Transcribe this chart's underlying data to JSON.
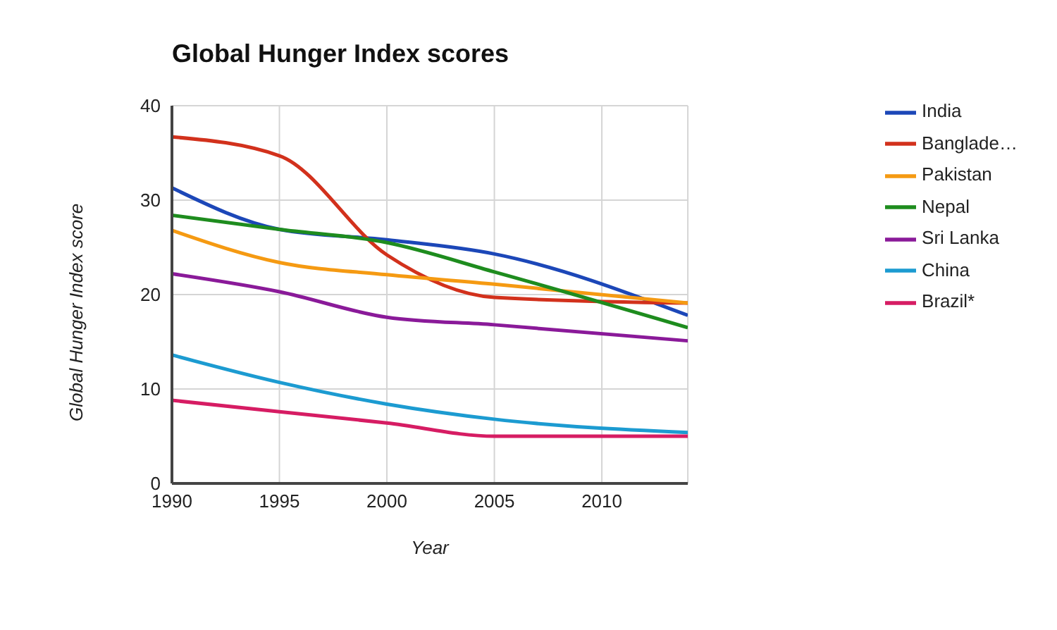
{
  "chart_data": {
    "type": "line",
    "title": "Global Hunger Index scores",
    "xlabel": "Year",
    "ylabel": "Global Hunger Index score",
    "x": [
      1990,
      1995,
      2000,
      2005,
      2014
    ],
    "series": [
      {
        "name": "India",
        "color": "#1c47b8",
        "values": [
          31.3,
          26.9,
          25.8,
          24.3,
          17.8
        ]
      },
      {
        "name": "Banglade…",
        "color": "#d2311c",
        "values": [
          36.7,
          34.7,
          24.2,
          19.7,
          19.1
        ]
      },
      {
        "name": "Pakistan",
        "color": "#f59a12",
        "values": [
          26.8,
          23.4,
          22.1,
          21.1,
          19.1
        ]
      },
      {
        "name": "Nepal",
        "color": "#1e8c1e",
        "values": [
          28.4,
          26.9,
          25.5,
          22.4,
          16.5
        ]
      },
      {
        "name": "Sri Lanka",
        "color": "#8a1a99",
        "values": [
          22.2,
          20.3,
          17.6,
          16.8,
          15.1
        ]
      },
      {
        "name": "China",
        "color": "#1c9bd1",
        "values": [
          13.6,
          10.7,
          8.4,
          6.8,
          5.4
        ]
      },
      {
        "name": "Brazil*",
        "color": "#d61c63",
        "values": [
          8.8,
          7.6,
          6.4,
          5.0,
          5.0
        ]
      }
    ],
    "xlim": [
      1990,
      2014
    ],
    "xticks": [
      1990,
      1995,
      2000,
      2005,
      2010
    ],
    "ylim": [
      0,
      40
    ],
    "yticks": [
      0,
      10,
      20,
      30,
      40
    ],
    "grid": true,
    "legend": "right",
    "marker": "none",
    "line_style": "solid"
  }
}
